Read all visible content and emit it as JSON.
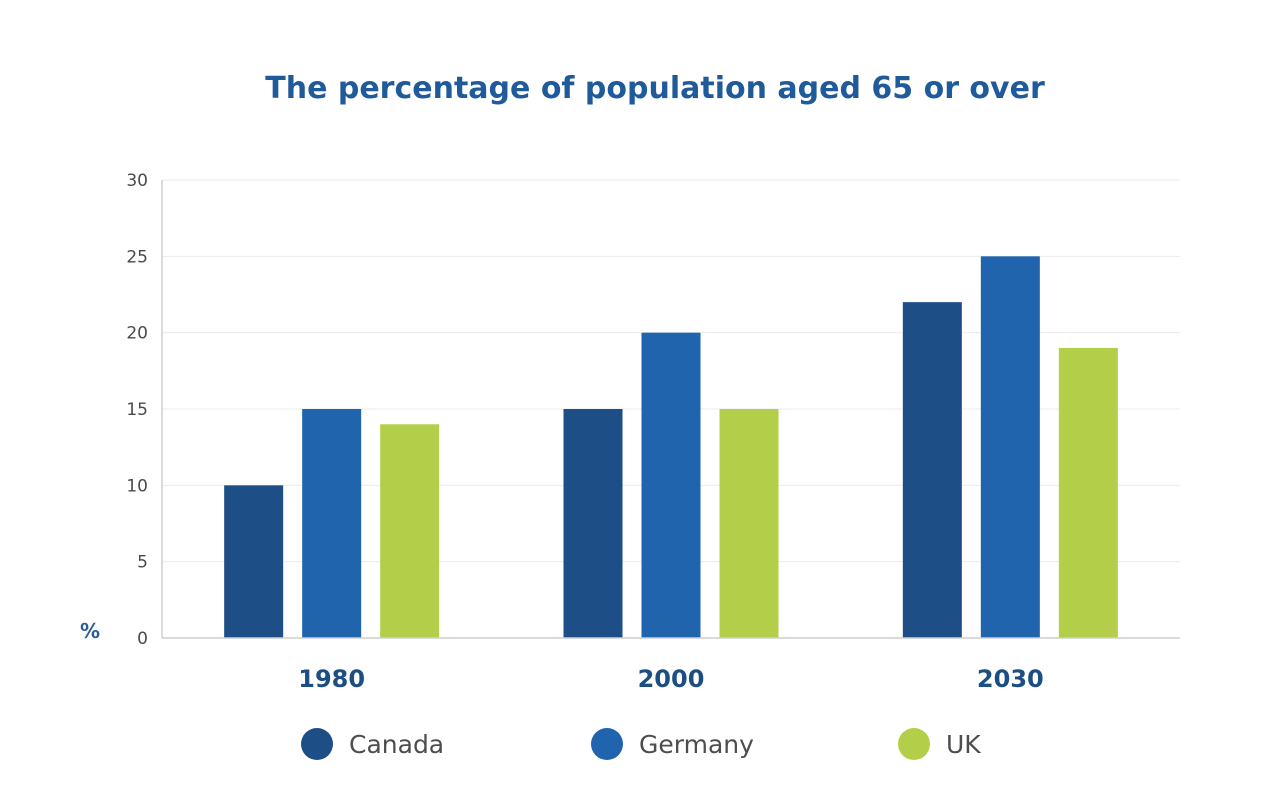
{
  "chart_data": {
    "type": "bar",
    "title": "The percentage of population aged 65 or over",
    "ylabel": "%",
    "xlabel": "",
    "categories": [
      "1980",
      "2000",
      "2030"
    ],
    "series": [
      {
        "name": "Canada",
        "values": [
          10,
          15,
          22
        ],
        "color": "#1d4e86"
      },
      {
        "name": "Germany",
        "values": [
          15,
          20,
          25
        ],
        "color": "#1f64ad"
      },
      {
        "name": "UK",
        "values": [
          14,
          15,
          19
        ],
        "color": "#b3cf4a"
      }
    ],
    "ylim": [
      0,
      30
    ],
    "yticks": [
      0,
      5,
      10,
      15,
      20,
      25,
      30
    ],
    "grid": true,
    "legend_position": "bottom"
  }
}
